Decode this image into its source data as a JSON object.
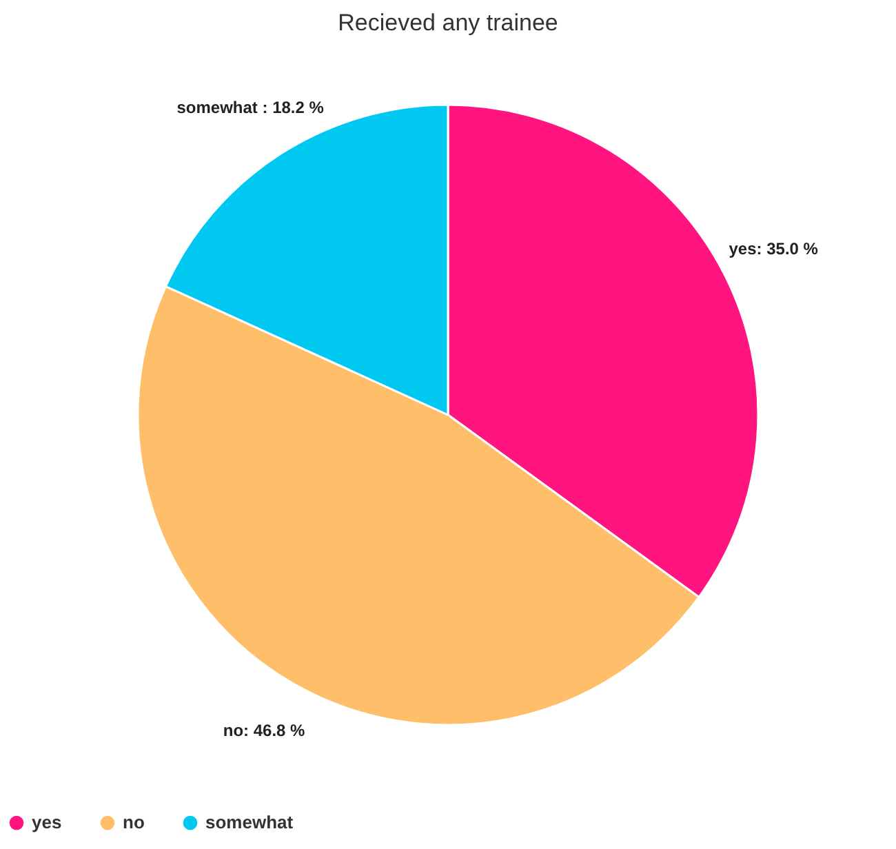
{
  "chart_data": {
    "type": "pie",
    "title": "Recieved any trainee",
    "categories": [
      "yes",
      "no",
      "somewhat"
    ],
    "values": [
      35.0,
      46.8,
      18.2
    ],
    "colors": [
      "#ff1480",
      "#ffbe6a",
      "#00c8f0"
    ],
    "value_labels": [
      "yes: 35.0 %",
      "no: 46.8 %",
      "somewhat : 18.2 %"
    ],
    "legend": "bottom"
  }
}
